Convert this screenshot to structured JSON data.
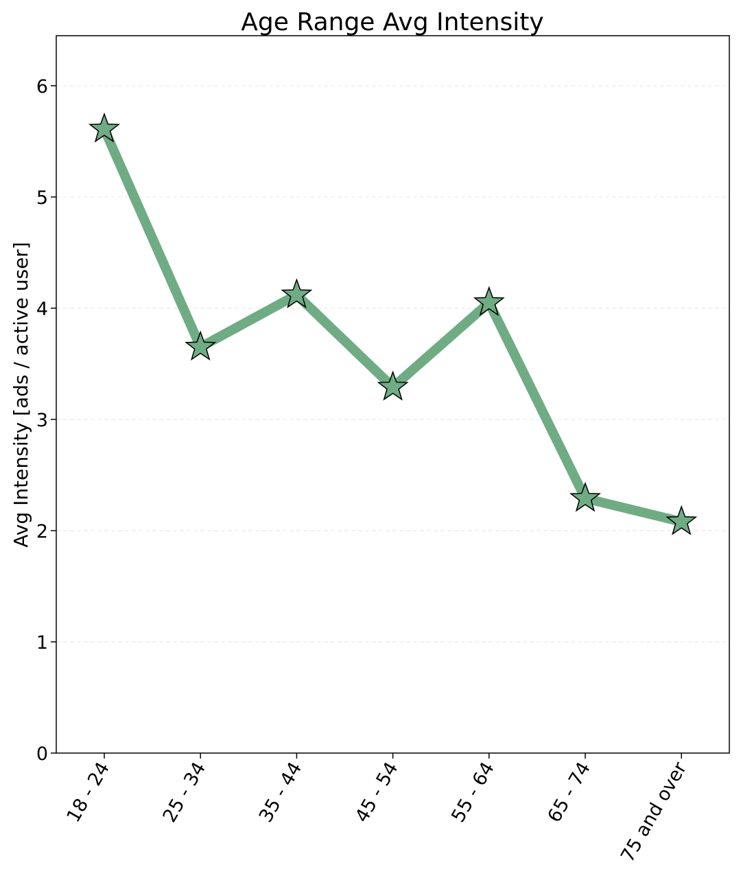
{
  "chart_data": {
    "type": "line",
    "title": "Age Range Avg Intensity",
    "xlabel": "",
    "ylabel": "Avg Intensity [ads / active user]",
    "categories": [
      "18 - 24",
      "25 - 34",
      "35 - 44",
      "45 - 54",
      "55 - 64",
      "65 - 74",
      "75 and over"
    ],
    "series": [
      {
        "values": [
          5.61,
          3.65,
          4.12,
          3.29,
          4.05,
          2.29,
          2.08
        ]
      }
    ],
    "ylim": [
      0,
      6.45
    ],
    "yticks": [
      0,
      1,
      2,
      3,
      4,
      5,
      6
    ],
    "grid": "horizontal dashed",
    "line_color": "#6fac84",
    "marker": "star",
    "marker_fill": "#6fac84",
    "marker_edge": "#000000"
  }
}
